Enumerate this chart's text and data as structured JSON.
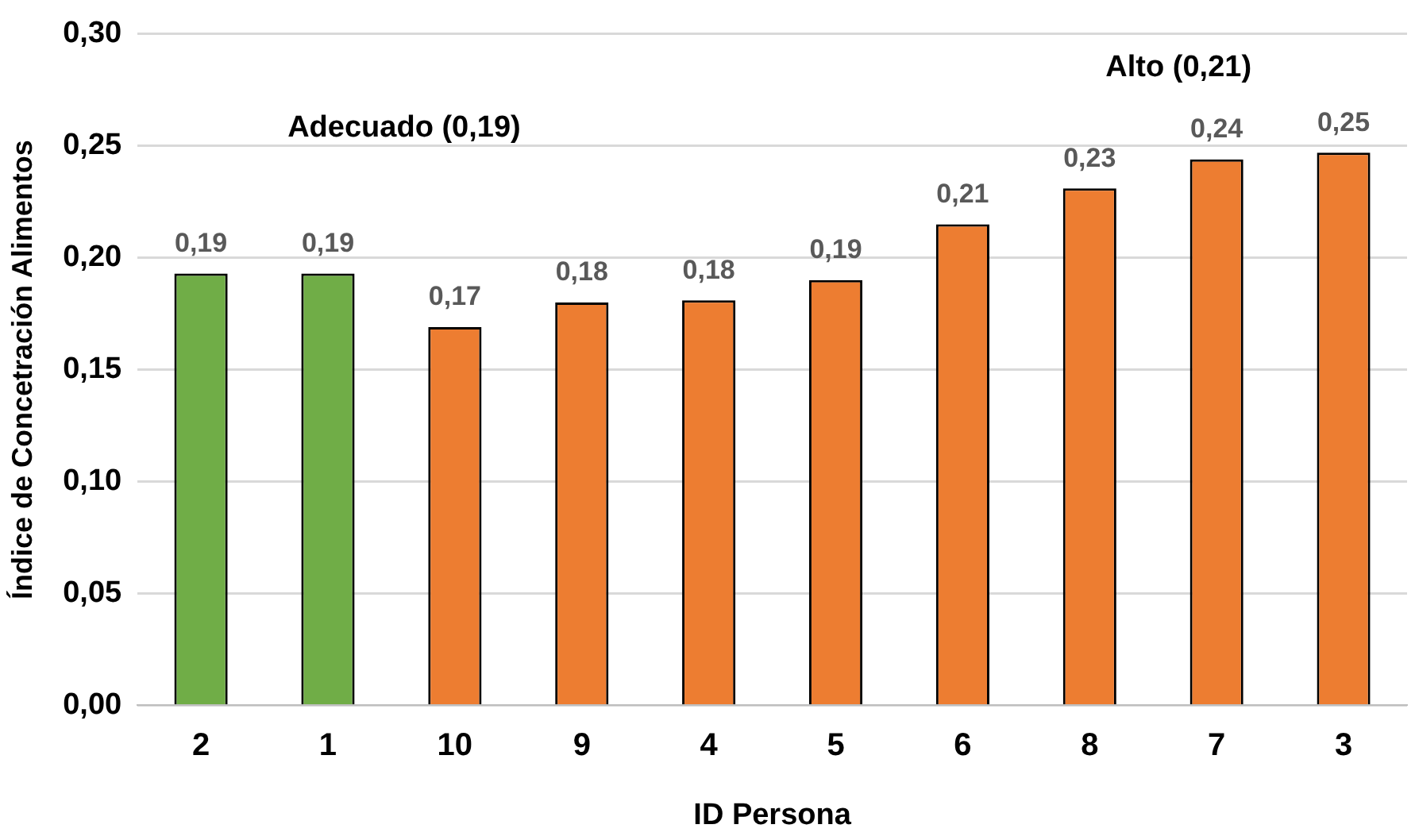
{
  "chart_data": {
    "type": "bar",
    "xlabel": "ID Persona",
    "ylabel": "Índice de Concetración Alimentos",
    "categories": [
      "2",
      "1",
      "10",
      "9",
      "4",
      "5",
      "6",
      "8",
      "7",
      "3"
    ],
    "values": [
      0.193,
      0.193,
      0.169,
      0.18,
      0.181,
      0.19,
      0.215,
      0.231,
      0.244,
      0.247
    ],
    "colors": [
      "#70ad47",
      "#70ad47",
      "#ed7d31",
      "#ed7d31",
      "#ed7d31",
      "#ed7d31",
      "#ed7d31",
      "#ed7d31",
      "#ed7d31",
      "#ed7d31"
    ],
    "value_labels": [
      "0,19",
      "0,19",
      "0,17",
      "0,18",
      "0,18",
      "0,19",
      "0,21",
      "0,23",
      "0,24",
      "0,25"
    ],
    "ylim": [
      0,
      0.3
    ],
    "yticks": [
      {
        "value": 0,
        "label": "0,00"
      },
      {
        "value": 0.05,
        "label": "0,05"
      },
      {
        "value": 0.1,
        "label": "0,10"
      },
      {
        "value": 0.15,
        "label": "0,15"
      },
      {
        "value": 0.2,
        "label": "0,20"
      },
      {
        "value": 0.25,
        "label": "0,25"
      },
      {
        "value": 0.3,
        "label": "0,30"
      }
    ],
    "grid": "y",
    "legend": false,
    "annotations": [
      "Adecuado (0,19)",
      "Alto (0,21)"
    ]
  }
}
